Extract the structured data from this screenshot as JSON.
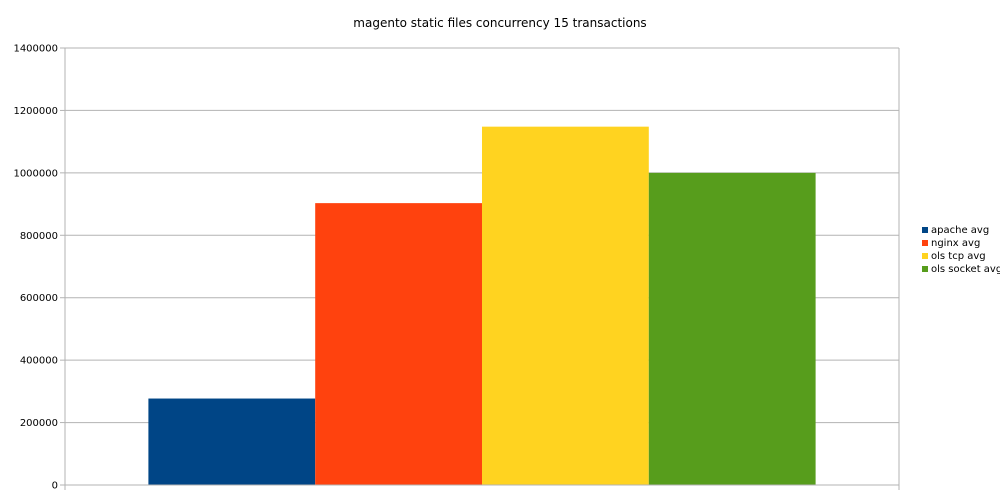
{
  "chart_data": {
    "type": "bar",
    "title": "magento static files concurrency 15 transactions",
    "xlabel": "",
    "ylabel": "",
    "categories": [
      ""
    ],
    "series": [
      {
        "name": "apache avg",
        "values": [
          277000
        ],
        "color": "#004586"
      },
      {
        "name": "nginx avg",
        "values": [
          903000
        ],
        "color": "#ff420e"
      },
      {
        "name": "ols tcp avg",
        "values": [
          1148000
        ],
        "color": "#ffd320"
      },
      {
        "name": "ols socket avg",
        "values": [
          1000000
        ],
        "color": "#579d1c"
      }
    ],
    "ylim": [
      0,
      1400000
    ],
    "yticks": [
      "0",
      "200000",
      "400000",
      "600000",
      "800000",
      "1000000",
      "1200000",
      "1400000"
    ],
    "grid": true,
    "legend": "right"
  }
}
